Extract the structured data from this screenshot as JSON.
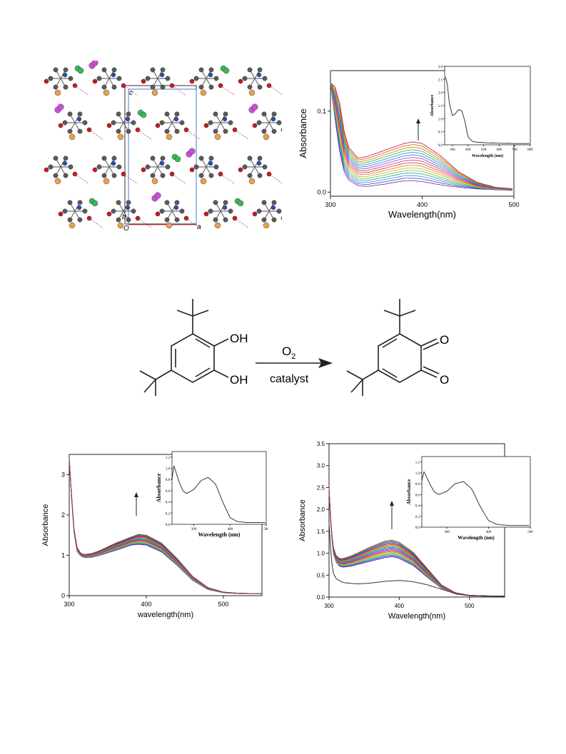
{
  "crystal": {
    "axis_labels": {
      "c": "c",
      "b": "b",
      "o": "O",
      "a": "a"
    }
  },
  "reaction": {
    "reactant_oh_top": "OH",
    "reactant_oh_bottom": "OH",
    "reagent": "O",
    "reagent_subscript": "2",
    "condition": "catalyst",
    "product_o_top": "O",
    "product_o_bottom": "O"
  },
  "colors": {
    "crystal_c": "#5a5a5a",
    "crystal_o": "#c8181e",
    "crystal_n": "#2a4fb0",
    "crystal_cu": "#e8a24a",
    "crystal_cl": "#3db85a",
    "crystal_i": "#c94fd6"
  },
  "chart_data": [
    {
      "id": "chart-top-right",
      "type": "line",
      "ylabel": "Absorbance",
      "xlabel": "Wavelength(nm)",
      "xlim": [
        300,
        500
      ],
      "ylim": [
        -0.005,
        0.15
      ],
      "xticks": [
        "300",
        "400",
        "500"
      ],
      "yticks": [
        "0.0",
        "0.1"
      ],
      "series_count": 16,
      "series": {
        "x": [
          300,
          305,
          310,
          315,
          320,
          330,
          340,
          360,
          380,
          390,
          400,
          420,
          440,
          460,
          480,
          500
        ],
        "base_values": [
          0.135,
          0.09,
          0.05,
          0.025,
          0.015,
          0.008,
          0.007,
          0.01,
          0.014,
          0.014,
          0.013,
          0.009,
          0.006,
          0.004,
          0.003,
          0.002
        ],
        "peak_values": [
          0.135,
          0.13,
          0.11,
          0.075,
          0.055,
          0.042,
          0.044,
          0.052,
          0.06,
          0.062,
          0.06,
          0.045,
          0.025,
          0.012,
          0.006,
          0.004
        ]
      },
      "arrow": "up",
      "inset": {
        "type": "line",
        "ylabel": "Absorbance",
        "xlabel": "Wavelength (nm)",
        "xlim": [
          250,
          800
        ],
        "ylim": [
          0,
          3.0
        ],
        "xticks": [
          "300",
          "400",
          "500",
          "600",
          "700",
          "800"
        ],
        "yticks": [
          "0.0",
          "0.5",
          "1.0",
          "1.5",
          "2.0",
          "2.5",
          "3.0"
        ],
        "x": [
          255,
          265,
          280,
          300,
          320,
          340,
          360,
          380,
          400,
          430,
          500,
          600,
          700,
          800
        ],
        "y": [
          2.6,
          2.4,
          1.6,
          1.1,
          1.2,
          1.35,
          1.3,
          0.9,
          0.3,
          0.12,
          0.08,
          0.06,
          0.05,
          0.05
        ]
      }
    },
    {
      "id": "chart-bottom-left",
      "type": "line",
      "ylabel": "Absorbance",
      "xlabel": "wavelength(nm)",
      "xlim": [
        300,
        550
      ],
      "ylim": [
        0,
        3.5
      ],
      "xticks": [
        "300",
        "400",
        "500"
      ],
      "yticks": [
        "0",
        "1",
        "2",
        "3"
      ],
      "series_count": 20,
      "series": {
        "x": [
          300,
          303,
          306,
          310,
          315,
          320,
          330,
          340,
          360,
          380,
          390,
          400,
          420,
          440,
          460,
          480,
          500,
          520,
          550
        ],
        "base_values": [
          3.4,
          2.4,
          1.6,
          1.1,
          0.98,
          0.94,
          0.95,
          1.0,
          1.12,
          1.25,
          1.27,
          1.25,
          1.08,
          0.75,
          0.38,
          0.15,
          0.07,
          0.05,
          0.05
        ],
        "peak_values": [
          3.4,
          2.5,
          1.7,
          1.2,
          1.05,
          1.02,
          1.05,
          1.12,
          1.3,
          1.45,
          1.52,
          1.5,
          1.3,
          0.92,
          0.48,
          0.2,
          0.09,
          0.06,
          0.05
        ]
      },
      "arrow": "up",
      "inset": {
        "type": "line",
        "ylabel": "Absorbance",
        "xlabel": "Wavelength (nm)",
        "xlim": [
          240,
          500
        ],
        "ylim": [
          0,
          1.3
        ],
        "xticks": [
          "300",
          "400",
          "500"
        ],
        "yticks": [
          "0.0",
          "0.2",
          "0.4",
          "0.6",
          "0.8",
          "1.0",
          "1.2"
        ],
        "x": [
          240,
          245,
          250,
          260,
          270,
          280,
          300,
          320,
          340,
          360,
          380,
          400,
          420,
          450,
          500
        ],
        "y": [
          0.8,
          1.05,
          0.95,
          0.75,
          0.6,
          0.55,
          0.62,
          0.78,
          0.84,
          0.72,
          0.4,
          0.12,
          0.05,
          0.03,
          0.03
        ]
      }
    },
    {
      "id": "chart-bottom-right",
      "type": "line",
      "ylabel": "Absorbance",
      "xlabel": "Wavelength(nm)",
      "xlim": [
        300,
        550
      ],
      "ylim": [
        0,
        3.5
      ],
      "xticks": [
        "300",
        "400",
        "500"
      ],
      "yticks": [
        "0.0",
        "0.5",
        "1.0",
        "1.5",
        "2.0",
        "2.5",
        "3.0",
        "3.5"
      ],
      "series_count": 20,
      "series": {
        "x": [
          300,
          303,
          306,
          310,
          315,
          320,
          330,
          340,
          360,
          380,
          390,
          400,
          420,
          440,
          460,
          480,
          500,
          520,
          550
        ],
        "base_values": [
          2.4,
          1.5,
          1.0,
          0.8,
          0.7,
          0.68,
          0.7,
          0.74,
          0.82,
          0.9,
          0.92,
          0.88,
          0.72,
          0.45,
          0.2,
          0.07,
          0.03,
          0.02,
          0.02
        ],
        "peak_values": [
          2.5,
          1.6,
          1.15,
          0.95,
          0.88,
          0.88,
          0.93,
          1.0,
          1.15,
          1.28,
          1.3,
          1.25,
          1.02,
          0.65,
          0.28,
          0.1,
          0.04,
          0.03,
          0.02
        ]
      },
      "reference_series": {
        "x": [
          300,
          303,
          306,
          310,
          320,
          340,
          360,
          380,
          400,
          420,
          440,
          460,
          480,
          500,
          550
        ],
        "y": [
          1.7,
          0.9,
          0.55,
          0.42,
          0.33,
          0.3,
          0.32,
          0.36,
          0.38,
          0.35,
          0.28,
          0.18,
          0.08,
          0.03,
          0.02
        ]
      },
      "arrow": "up",
      "inset": {
        "type": "line",
        "ylabel": "Absorbance",
        "xlabel": "Wavelength (nm)",
        "xlim": [
          240,
          500
        ],
        "ylim": [
          0,
          1.3
        ],
        "xticks": [
          "300",
          "400",
          "500"
        ],
        "yticks": [
          "0.0",
          "0.2",
          "0.4",
          "0.6",
          "0.8",
          "1.0",
          "1.2"
        ],
        "x": [
          240,
          245,
          250,
          260,
          270,
          280,
          300,
          320,
          340,
          360,
          380,
          400,
          420,
          450,
          500
        ],
        "y": [
          0.85,
          1.02,
          0.95,
          0.78,
          0.65,
          0.6,
          0.66,
          0.8,
          0.84,
          0.7,
          0.38,
          0.12,
          0.05,
          0.03,
          0.03
        ]
      }
    }
  ]
}
